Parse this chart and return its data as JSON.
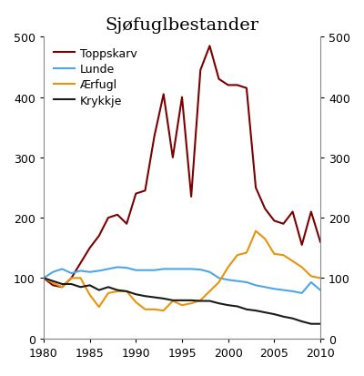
{
  "title": "Sjøfuglbestander",
  "years": [
    1980,
    1981,
    1982,
    1983,
    1984,
    1985,
    1986,
    1987,
    1988,
    1989,
    1990,
    1991,
    1992,
    1993,
    1994,
    1995,
    1996,
    1997,
    1998,
    1999,
    2000,
    2001,
    2002,
    2003,
    2004,
    2005,
    2006,
    2007,
    2008,
    2009,
    2010
  ],
  "toppskarv": [
    100,
    88,
    85,
    100,
    125,
    150,
    170,
    200,
    205,
    190,
    240,
    245,
    335,
    405,
    300,
    400,
    235,
    445,
    485,
    430,
    420,
    420,
    415,
    250,
    215,
    195,
    190,
    210,
    155,
    210,
    160
  ],
  "lunde": [
    100,
    110,
    115,
    108,
    112,
    110,
    112,
    115,
    118,
    117,
    113,
    113,
    113,
    115,
    115,
    115,
    115,
    114,
    110,
    100,
    97,
    95,
    93,
    88,
    85,
    82,
    80,
    78,
    75,
    93,
    80
  ],
  "aerfulg": [
    100,
    92,
    85,
    100,
    100,
    72,
    52,
    75,
    78,
    78,
    60,
    48,
    48,
    46,
    62,
    55,
    58,
    63,
    78,
    93,
    118,
    138,
    142,
    178,
    165,
    140,
    138,
    128,
    118,
    103,
    100
  ],
  "krykkje": [
    100,
    95,
    90,
    90,
    85,
    88,
    80,
    85,
    80,
    78,
    73,
    70,
    68,
    66,
    63,
    63,
    63,
    62,
    62,
    58,
    55,
    53,
    48,
    46,
    43,
    40,
    36,
    33,
    28,
    24,
    24
  ],
  "toppskarv_color": "#7b0000",
  "lunde_color": "#4da6e8",
  "aerfulg_color": "#e8940a",
  "krykkje_color": "#1a1a1a",
  "ylim": [
    0,
    500
  ],
  "yticks": [
    0,
    100,
    200,
    300,
    400,
    500
  ],
  "xticks": [
    1980,
    1985,
    1990,
    1995,
    2000,
    2005,
    2010
  ],
  "legend_labels": [
    "Toppskarv",
    "Lunde",
    "Ærfugl",
    "Krykkje"
  ],
  "line_width": 1.5,
  "title_fontsize": 14,
  "tick_fontsize": 9,
  "legend_fontsize": 9
}
